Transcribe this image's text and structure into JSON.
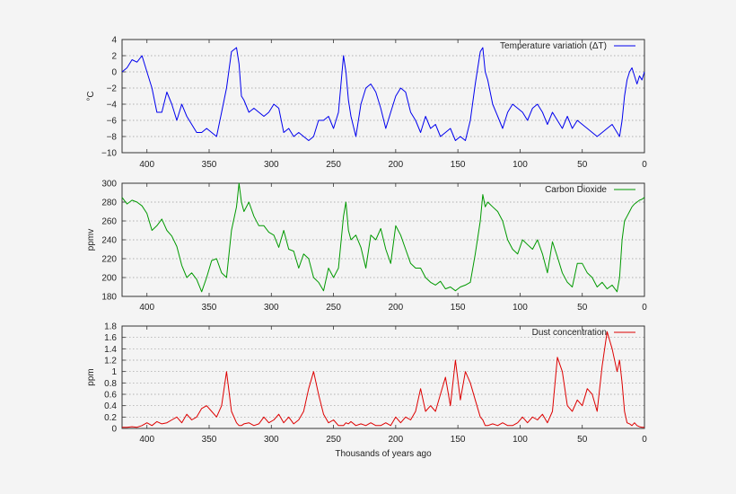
{
  "chart_data": [
    {
      "type": "line",
      "series": [
        {
          "name": "Temperature variation (ΔT)",
          "color": "#0000ee"
        }
      ],
      "ylabel": "°C",
      "xlabel": "",
      "xlim": [
        420,
        0
      ],
      "ylim": [
        -10,
        4
      ],
      "x_ticks": [
        "400",
        "350",
        "300",
        "250",
        "200",
        "150",
        "100",
        "50",
        "0"
      ],
      "y_ticks": [
        "4",
        "2",
        "0",
        "−2",
        "−4",
        "−6",
        "−8",
        "−10"
      ],
      "grid": true,
      "legend": "top-right",
      "x": [
        420,
        416,
        412,
        408,
        404,
        400,
        396,
        392,
        388,
        384,
        380,
        376,
        372,
        368,
        364,
        360,
        356,
        352,
        348,
        344,
        340,
        336,
        332,
        328,
        326,
        324,
        322,
        318,
        314,
        310,
        306,
        302,
        298,
        294,
        290,
        286,
        282,
        278,
        274,
        270,
        266,
        262,
        258,
        254,
        250,
        246,
        242,
        240,
        238,
        236,
        232,
        228,
        224,
        220,
        216,
        212,
        208,
        204,
        200,
        196,
        192,
        188,
        184,
        180,
        176,
        172,
        168,
        164,
        160,
        156,
        152,
        148,
        144,
        140,
        136,
        132,
        130,
        128,
        126,
        122,
        118,
        114,
        110,
        106,
        102,
        98,
        94,
        90,
        86,
        82,
        78,
        74,
        70,
        66,
        62,
        58,
        54,
        50,
        46,
        42,
        38,
        34,
        30,
        26,
        22,
        20,
        18,
        16,
        14,
        12,
        10,
        8,
        6,
        4,
        2,
        0
      ],
      "y": [
        0,
        0.5,
        1.5,
        1.2,
        2,
        0,
        -2,
        -5,
        -5,
        -2.5,
        -4,
        -6,
        -4,
        -5.5,
        -6.5,
        -7.5,
        -7.5,
        -7,
        -7.5,
        -8,
        -5,
        -2,
        2.5,
        3,
        1,
        -3,
        -3.5,
        -5,
        -4.5,
        -5,
        -5.5,
        -5,
        -4,
        -4.5,
        -7.5,
        -7,
        -8,
        -7.5,
        -8,
        -8.5,
        -8,
        -6,
        -6,
        -5.5,
        -7,
        -5,
        2,
        0,
        -3.5,
        -5.5,
        -8,
        -4,
        -2,
        -1.5,
        -2.5,
        -4.5,
        -7,
        -5,
        -3,
        -2,
        -2.5,
        -5,
        -6,
        -7.5,
        -5.5,
        -7,
        -6.5,
        -8,
        -7.5,
        -7,
        -8.5,
        -8,
        -8.5,
        -6,
        -1.5,
        2.5,
        3,
        0,
        -1,
        -4,
        -5.5,
        -7,
        -5,
        -4,
        -4.5,
        -5,
        -6,
        -4.5,
        -4,
        -5,
        -6.5,
        -5,
        -6,
        -7,
        -5.5,
        -7,
        -6,
        -6.5,
        -7,
        -7.5,
        -8,
        -7.5,
        -7,
        -6.5,
        -7.5,
        -8,
        -6,
        -3,
        -1,
        0,
        0.5,
        -0.5,
        -1.5,
        -0.5,
        -1,
        0
      ]
    },
    {
      "type": "line",
      "series": [
        {
          "name": "Carbon Dioxide",
          "color": "#009900"
        }
      ],
      "ylabel": "ppmv",
      "xlabel": "",
      "xlim": [
        420,
        0
      ],
      "ylim": [
        180,
        300
      ],
      "x_ticks": [
        "400",
        "350",
        "300",
        "250",
        "200",
        "150",
        "100",
        "50",
        "0"
      ],
      "y_ticks": [
        "300",
        "280",
        "260",
        "240",
        "220",
        "200",
        "180"
      ],
      "grid": true,
      "legend": "top-right",
      "x": [
        420,
        416,
        412,
        408,
        404,
        400,
        396,
        392,
        388,
        384,
        380,
        376,
        372,
        368,
        364,
        360,
        356,
        352,
        348,
        344,
        340,
        336,
        332,
        328,
        326,
        324,
        322,
        318,
        314,
        310,
        306,
        302,
        298,
        294,
        290,
        286,
        282,
        278,
        274,
        270,
        266,
        262,
        258,
        254,
        250,
        246,
        242,
        240,
        238,
        236,
        232,
        228,
        224,
        220,
        216,
        212,
        208,
        204,
        200,
        196,
        192,
        188,
        184,
        180,
        176,
        172,
        168,
        164,
        160,
        156,
        152,
        148,
        144,
        140,
        136,
        132,
        130,
        128,
        126,
        122,
        118,
        114,
        110,
        106,
        102,
        98,
        94,
        90,
        86,
        82,
        78,
        74,
        70,
        66,
        62,
        58,
        54,
        50,
        46,
        42,
        38,
        34,
        30,
        26,
        22,
        20,
        18,
        16,
        14,
        12,
        10,
        8,
        6,
        4,
        2,
        0
      ],
      "y": [
        285,
        278,
        282,
        280,
        276,
        268,
        250,
        255,
        262,
        250,
        244,
        233,
        213,
        200,
        205,
        198,
        185,
        200,
        218,
        220,
        205,
        200,
        250,
        275,
        300,
        280,
        270,
        280,
        265,
        255,
        255,
        248,
        245,
        232,
        250,
        230,
        228,
        210,
        225,
        220,
        200,
        195,
        186,
        210,
        200,
        210,
        265,
        280,
        250,
        240,
        245,
        232,
        210,
        245,
        240,
        252,
        230,
        215,
        255,
        245,
        230,
        215,
        210,
        210,
        200,
        195,
        192,
        196,
        188,
        190,
        186,
        190,
        192,
        195,
        225,
        260,
        288,
        275,
        280,
        275,
        270,
        260,
        240,
        230,
        225,
        240,
        235,
        230,
        240,
        225,
        205,
        238,
        222,
        205,
        195,
        190,
        215,
        215,
        205,
        200,
        190,
        195,
        188,
        192,
        185,
        200,
        240,
        260,
        265,
        270,
        275,
        278,
        280,
        282,
        283,
        285
      ]
    },
    {
      "type": "line",
      "series": [
        {
          "name": "Dust concentration",
          "color": "#dd0000"
        }
      ],
      "ylabel": "ppm",
      "xlabel": "Thousands of years ago",
      "xlim": [
        420,
        0
      ],
      "ylim": [
        0,
        1.8
      ],
      "x_ticks": [
        "400",
        "350",
        "300",
        "250",
        "200",
        "150",
        "100",
        "50",
        "0"
      ],
      "y_ticks": [
        "1.8",
        "1.6",
        "1.4",
        "1.2",
        "1",
        "0.8",
        "0.6",
        "0.4",
        "0.2",
        "0"
      ],
      "grid": true,
      "legend": "top-right",
      "x": [
        420,
        416,
        412,
        408,
        404,
        400,
        396,
        392,
        388,
        384,
        380,
        376,
        372,
        368,
        364,
        360,
        356,
        352,
        348,
        344,
        340,
        336,
        332,
        328,
        326,
        324,
        322,
        318,
        314,
        310,
        306,
        302,
        298,
        294,
        290,
        286,
        282,
        278,
        274,
        270,
        266,
        262,
        258,
        254,
        250,
        246,
        242,
        240,
        238,
        236,
        232,
        228,
        224,
        220,
        216,
        212,
        208,
        204,
        200,
        196,
        192,
        188,
        184,
        180,
        176,
        172,
        168,
        164,
        160,
        156,
        152,
        148,
        144,
        140,
        136,
        132,
        130,
        128,
        126,
        122,
        118,
        114,
        110,
        106,
        102,
        98,
        94,
        90,
        86,
        82,
        78,
        74,
        70,
        66,
        62,
        58,
        54,
        50,
        46,
        42,
        38,
        34,
        30,
        26,
        22,
        20,
        18,
        16,
        14,
        12,
        10,
        8,
        6,
        4,
        2,
        0
      ],
      "y": [
        0.02,
        0.02,
        0.03,
        0.02,
        0.05,
        0.1,
        0.05,
        0.12,
        0.08,
        0.1,
        0.15,
        0.2,
        0.1,
        0.25,
        0.15,
        0.2,
        0.35,
        0.4,
        0.3,
        0.2,
        0.4,
        1.0,
        0.3,
        0.1,
        0.05,
        0.05,
        0.08,
        0.1,
        0.05,
        0.08,
        0.2,
        0.1,
        0.15,
        0.25,
        0.1,
        0.2,
        0.08,
        0.15,
        0.3,
        0.7,
        1.0,
        0.6,
        0.25,
        0.1,
        0.15,
        0.05,
        0.05,
        0.1,
        0.08,
        0.12,
        0.05,
        0.08,
        0.05,
        0.1,
        0.05,
        0.05,
        0.1,
        0.05,
        0.2,
        0.1,
        0.2,
        0.15,
        0.3,
        0.7,
        0.3,
        0.4,
        0.3,
        0.6,
        0.9,
        0.4,
        1.2,
        0.5,
        1.0,
        0.8,
        0.5,
        0.2,
        0.15,
        0.05,
        0.05,
        0.08,
        0.05,
        0.1,
        0.05,
        0.05,
        0.1,
        0.2,
        0.1,
        0.2,
        0.15,
        0.25,
        0.1,
        0.3,
        1.25,
        1.0,
        0.4,
        0.3,
        0.5,
        0.4,
        0.7,
        0.6,
        0.3,
        1.1,
        1.7,
        1.4,
        1.0,
        1.2,
        0.8,
        0.3,
        0.1,
        0.08,
        0.05,
        0.1,
        0.05,
        0.03,
        0.02,
        0.02
      ]
    }
  ]
}
